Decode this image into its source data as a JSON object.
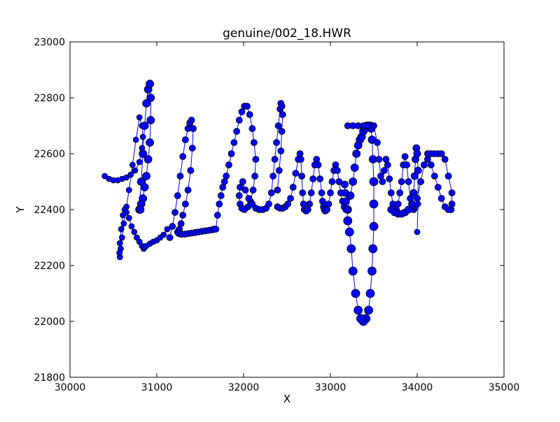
{
  "chart_data": {
    "type": "scatter",
    "title": "genuine/002_18.HWR",
    "xlabel": "X",
    "ylabel": "Y",
    "xlim": [
      30000,
      35000
    ],
    "ylim": [
      21800,
      23000
    ],
    "xticks": [
      30000,
      31000,
      32000,
      33000,
      34000,
      35000
    ],
    "yticks": [
      21800,
      22000,
      22200,
      22400,
      22600,
      22800,
      23000
    ],
    "grid": false,
    "legend": "none",
    "marker_color": "#0000ff",
    "marker_edge_color": "#000000",
    "line_color": "#0000ff",
    "series": [
      {
        "x": [
          30400,
          30450,
          30500,
          30550,
          30600,
          30650,
          30700,
          30750,
          30800,
          30830,
          30840,
          30830,
          30800,
          30760,
          30720,
          30680,
          30650,
          30620,
          30600,
          30585,
          30575,
          30570,
          30575,
          30590,
          30610,
          30630,
          30650,
          30680,
          30710,
          30740,
          30770,
          30800,
          30830,
          30850,
          30860,
          30880,
          30920,
          30960,
          31000,
          31040,
          31080,
          31120
        ],
        "y": [
          22520,
          22510,
          22505,
          22505,
          22510,
          22515,
          22525,
          22540,
          22570,
          22620,
          22660,
          22700,
          22730,
          22650,
          22560,
          22470,
          22410,
          22350,
          22300,
          22260,
          22230,
          22245,
          22280,
          22330,
          22380,
          22400,
          22390,
          22370,
          22340,
          22320,
          22300,
          22285,
          22270,
          22260,
          22265,
          22270,
          22278,
          22285,
          22290,
          22300,
          22310,
          22330
        ],
        "sizes": [
          6,
          6,
          6,
          6,
          6,
          6,
          6,
          6,
          6,
          6,
          6,
          6,
          6,
          6,
          6,
          6,
          6,
          6,
          6,
          6,
          6,
          6,
          6,
          6,
          6,
          6,
          6,
          6,
          6,
          6,
          6,
          6,
          6,
          6,
          6,
          6,
          6,
          6,
          6,
          6,
          6,
          6
        ]
      },
      {
        "x": [
          30800,
          30820,
          30840,
          30860,
          30880,
          30900,
          30920,
          30930,
          30930,
          30920,
          30900,
          30880,
          30860,
          30840,
          30820,
          30810
        ],
        "y": [
          22400,
          22500,
          22600,
          22700,
          22780,
          22830,
          22850,
          22800,
          22720,
          22640,
          22580,
          22520,
          22480,
          22440,
          22420,
          22400
        ],
        "sizes": [
          9,
          9,
          9,
          9,
          9,
          9,
          9,
          9,
          9,
          9,
          9,
          9,
          9,
          9,
          9,
          9
        ]
      },
      {
        "x": [
          31150,
          31180,
          31210,
          31240,
          31270,
          31300,
          31330,
          31360,
          31380,
          31400,
          31420,
          31410,
          31390,
          31360,
          31330,
          31300,
          31280,
          31260,
          31240,
          31250,
          31280,
          31320,
          31360,
          31400,
          31440,
          31480,
          31520,
          31560,
          31600,
          31640,
          31660
        ],
        "y": [
          22300,
          22340,
          22390,
          22450,
          22520,
          22590,
          22650,
          22690,
          22710,
          22720,
          22690,
          22620,
          22540,
          22470,
          22420,
          22380,
          22350,
          22330,
          22320,
          22315,
          22312,
          22312,
          22314,
          22316,
          22318,
          22320,
          22322,
          22324,
          22326,
          22328,
          22330
        ],
        "sizes": [
          7,
          7,
          7,
          7,
          7,
          7,
          7,
          7,
          7,
          7,
          7,
          7,
          7,
          7,
          7,
          7,
          7,
          7,
          7,
          7,
          7,
          7,
          7,
          7,
          7,
          7,
          7,
          7,
          7,
          7,
          7
        ]
      },
      {
        "x": [
          31680,
          31700,
          31720,
          31740,
          31760,
          31780,
          31800,
          31830,
          31860,
          31890,
          31920,
          31950,
          31980,
          32010,
          32040,
          32070,
          32100,
          32120,
          32140,
          32130,
          32110,
          32080,
          32050,
          32010,
          31980,
          31960,
          31950,
          31960,
          31990,
          32020,
          32060,
          32100,
          32140,
          32180,
          32220,
          32260,
          32290,
          32320,
          32340,
          32360,
          32380,
          32400,
          32420,
          32430,
          32440,
          32450,
          32440,
          32430,
          32410,
          32390
        ],
        "y": [
          22330,
          22380,
          22420,
          22450,
          22480,
          22500,
          22520,
          22560,
          22600,
          22640,
          22680,
          22720,
          22750,
          22770,
          22770,
          22740,
          22690,
          22640,
          22580,
          22520,
          22470,
          22430,
          22410,
          22400,
          22405,
          22420,
          22450,
          22480,
          22500,
          22470,
          22440,
          22420,
          22405,
          22400,
          22400,
          22405,
          22420,
          22460,
          22520,
          22580,
          22640,
          22700,
          22760,
          22780,
          22770,
          22740,
          22680,
          22610,
          22540,
          22470
        ],
        "sizes": [
          7,
          7,
          7,
          7,
          7,
          7,
          7,
          7,
          7,
          7,
          7,
          7,
          7,
          7,
          7,
          7,
          7,
          7,
          7,
          7,
          7,
          7,
          7,
          7,
          7,
          7,
          7,
          7,
          7,
          7,
          7,
          7,
          7,
          7,
          7,
          7,
          7,
          7,
          7,
          7,
          7,
          7,
          7,
          7,
          7,
          7,
          7,
          7,
          7,
          7
        ]
      },
      {
        "x": [
          32390,
          32420,
          32450,
          32480,
          32510,
          32540,
          32570,
          32600,
          32630,
          32650,
          32660,
          32670,
          32680,
          32690,
          32700,
          32720,
          32740,
          32760,
          32780,
          32800,
          32820,
          32840,
          32860,
          32880,
          32900,
          32910,
          32920,
          32930,
          32940,
          32960,
          32980,
          33000,
          33020,
          33040,
          33060,
          33080,
          33100,
          33120,
          33140,
          33160,
          33180,
          33200
        ],
        "y": [
          22410,
          22405,
          22405,
          22410,
          22420,
          22440,
          22480,
          22530,
          22580,
          22600,
          22580,
          22520,
          22460,
          22420,
          22400,
          22395,
          22400,
          22420,
          22460,
          22510,
          22560,
          22580,
          22560,
          22510,
          22460,
          22430,
          22410,
          22400,
          22395,
          22400,
          22420,
          22460,
          22500,
          22540,
          22560,
          22540,
          22500,
          22460,
          22430,
          22410,
          22400,
          22400
        ],
        "sizes": [
          7,
          7,
          7,
          7,
          7,
          7,
          7,
          7,
          7,
          7,
          7,
          7,
          7,
          7,
          7,
          7,
          7,
          7,
          7,
          7,
          7,
          7,
          7,
          7,
          7,
          7,
          7,
          7,
          7,
          7,
          7,
          7,
          7,
          7,
          7,
          7,
          7,
          7,
          7,
          7,
          7,
          7
        ]
      },
      {
        "x": [
          33200,
          33230,
          33260,
          33280,
          33300,
          33320,
          33340,
          33360,
          33380,
          33400,
          33420,
          33440,
          33460,
          33470,
          33480,
          33490,
          33500,
          33500,
          33500,
          33490,
          33480,
          33460,
          33440,
          33410,
          33380,
          33350,
          33320,
          33290,
          33260,
          33240,
          33220,
          33200,
          33190,
          33180,
          33170,
          33165
        ],
        "y": [
          22400,
          22450,
          22500,
          22550,
          22600,
          22630,
          22650,
          22660,
          22680,
          22690,
          22700,
          22700,
          22700,
          22690,
          22650,
          22580,
          22500,
          22420,
          22340,
          22260,
          22180,
          22100,
          22040,
          22010,
          22000,
          22010,
          22040,
          22100,
          22180,
          22260,
          22320,
          22360,
          22400,
          22430,
          22460,
          22490
        ],
        "sizes": [
          9,
          9,
          9,
          9,
          9,
          9,
          9,
          9,
          9,
          9,
          9,
          9,
          9,
          9,
          9,
          9,
          10,
          10,
          10,
          10,
          10,
          10,
          10,
          10,
          10,
          10,
          10,
          10,
          10,
          10,
          10,
          10,
          8,
          8,
          8,
          8
        ]
      },
      {
        "x": [
          33200,
          33260,
          33320,
          33380,
          33440,
          33500,
          33540,
          33560,
          33580,
          33600,
          33620,
          33640,
          33660,
          33680,
          33700,
          33720,
          33740,
          33760,
          33780,
          33800,
          33820,
          33840,
          33860,
          33880,
          33900,
          33920,
          33940,
          33960,
          33980,
          34000,
          34040,
          34080,
          34120,
          34160,
          34200,
          34240,
          34280,
          34320,
          34360,
          34400,
          34400,
          34390,
          34360,
          34320,
          34280,
          34240,
          34200,
          34160,
          34120,
          34080,
          34040,
          34000
        ],
        "y": [
          22700,
          22700,
          22700,
          22700,
          22700,
          22700,
          22640,
          22580,
          22520,
          22500,
          22540,
          22580,
          22560,
          22510,
          22460,
          22420,
          22400,
          22400,
          22420,
          22460,
          22500,
          22560,
          22590,
          22560,
          22500,
          22440,
          22410,
          22400,
          22410,
          22440,
          22500,
          22560,
          22600,
          22600,
          22600,
          22600,
          22600,
          22580,
          22520,
          22460,
          22420,
          22400,
          22400,
          22410,
          22440,
          22480,
          22520,
          22560,
          22580,
          22560,
          22500,
          22440
        ],
        "sizes": [
          7,
          7,
          7,
          7,
          7,
          7,
          7,
          7,
          7,
          7,
          7,
          7,
          7,
          7,
          7,
          7,
          7,
          7,
          7,
          7,
          7,
          7,
          7,
          7,
          7,
          7,
          7,
          7,
          7,
          7,
          7,
          7,
          7,
          7,
          7,
          7,
          7,
          7,
          7,
          7,
          7,
          7,
          7,
          7,
          7,
          7,
          7,
          7,
          7,
          7,
          7,
          7
        ]
      },
      {
        "x": [
          33700,
          33740,
          33780,
          33820,
          33860,
          33900,
          33940,
          33960,
          33970,
          33980,
          33990,
          34000,
          34010,
          34010,
          34000
        ],
        "y": [
          22400,
          22390,
          22385,
          22385,
          22390,
          22400,
          22420,
          22460,
          22520,
          22580,
          22620,
          22600,
          22540,
          22420,
          22320
        ],
        "sizes": [
          8,
          8,
          8,
          8,
          8,
          8,
          8,
          8,
          8,
          8,
          8,
          8,
          8,
          6,
          6
        ]
      }
    ]
  }
}
